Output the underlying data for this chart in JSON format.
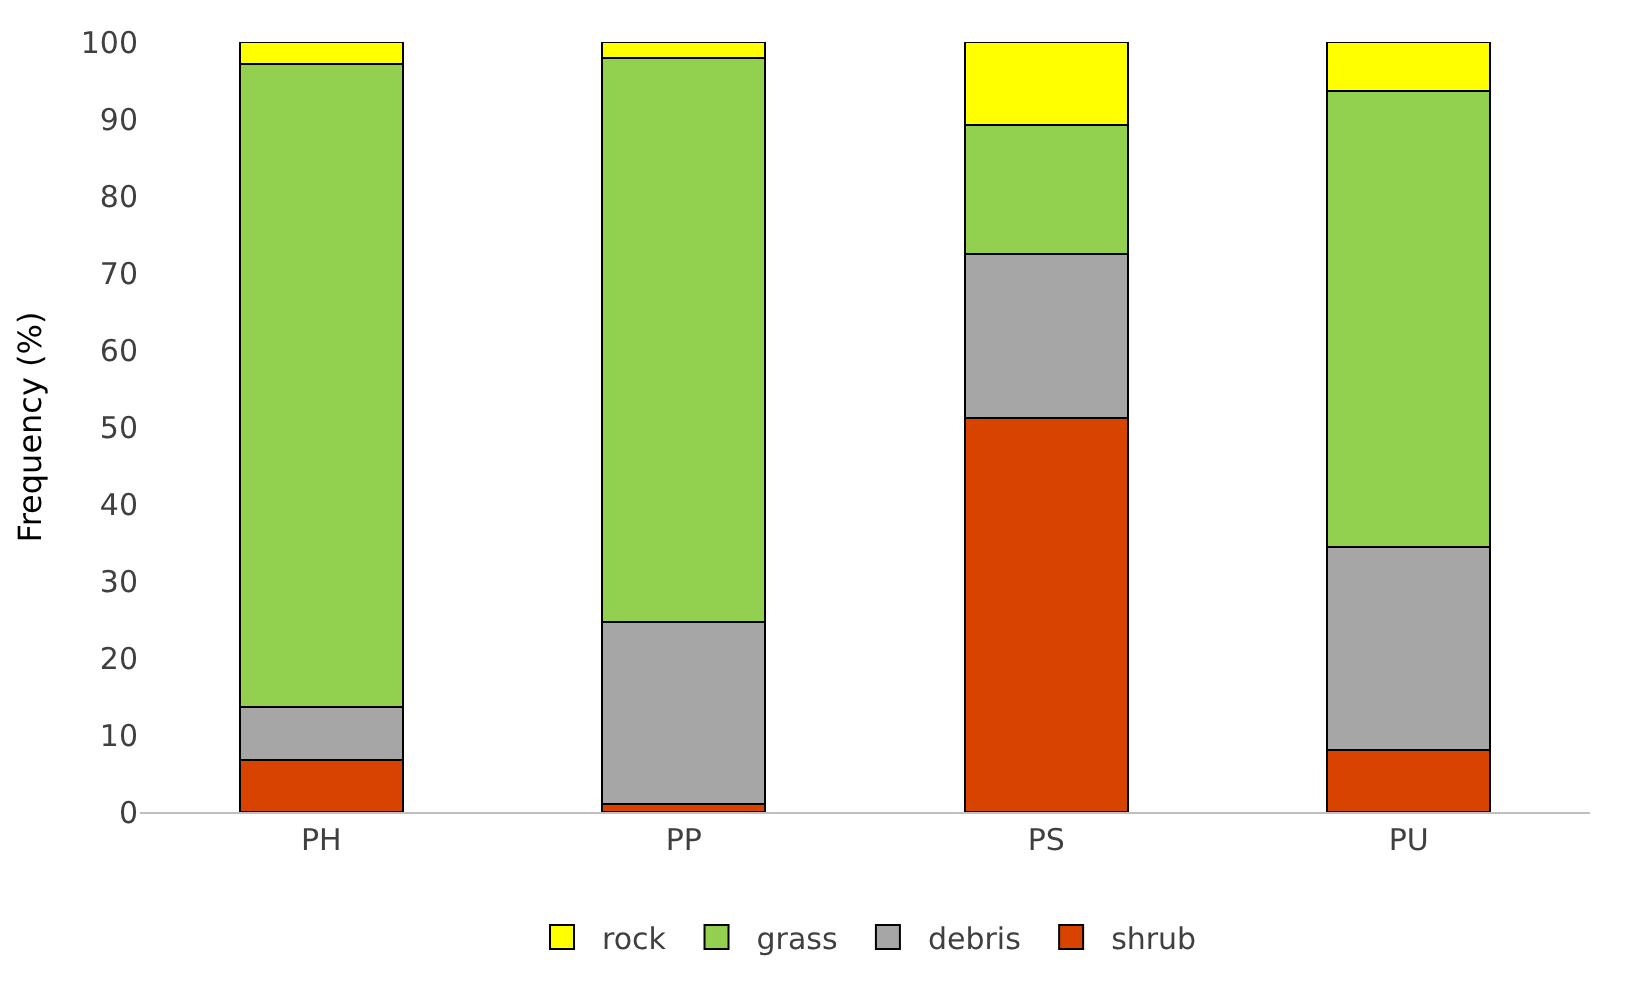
{
  "chart_data": {
    "type": "bar",
    "stacked": true,
    "ylabel": "Frequency (%)",
    "categories": [
      "PH",
      "PP",
      "PS",
      "PU"
    ],
    "series": [
      {
        "name": "shrub",
        "color": "#d84300",
        "values": [
          6.7,
          1.0,
          51.2,
          8.0
        ]
      },
      {
        "name": "debris",
        "color": "#a6a6a6",
        "values": [
          6.9,
          23.7,
          21.3,
          26.4
        ]
      },
      {
        "name": "grass",
        "color": "#92d050",
        "values": [
          83.6,
          73.2,
          16.7,
          59.2
        ]
      },
      {
        "name": "rock",
        "color": "#ffff00",
        "values": [
          2.8,
          2.1,
          10.8,
          6.4
        ]
      }
    ],
    "ylim": [
      0,
      100
    ],
    "yticks": [
      0,
      10,
      20,
      30,
      40,
      50,
      60,
      70,
      80,
      90,
      100
    ],
    "grid": false,
    "legend": "bottom"
  }
}
